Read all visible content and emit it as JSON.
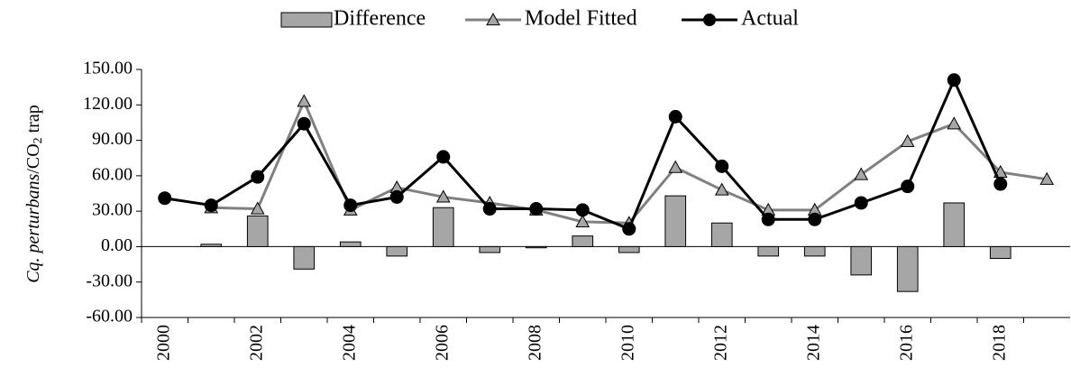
{
  "chart_data": {
    "type": "bar-line",
    "y_label": [
      "Cq. perturbans",
      "/CO",
      "2",
      " trap"
    ],
    "categories": [
      "2000",
      null,
      "2002",
      null,
      "2004",
      null,
      "2006",
      null,
      "2008",
      null,
      "2010",
      null,
      "2012",
      null,
      "2014",
      null,
      "2016",
      null,
      "2018",
      null
    ],
    "series": [
      {
        "name": "Difference",
        "type": "bar",
        "color": "#a6a6a6",
        "values": [
          null,
          2,
          26,
          -19,
          4,
          -8,
          33,
          -5,
          -1,
          9,
          -5,
          43,
          20,
          -8,
          -8,
          -24,
          -38,
          37,
          -10,
          null
        ]
      },
      {
        "name": "Model Fitted",
        "type": "line",
        "marker": "triangle",
        "color": "#808080",
        "values": [
          null,
          33,
          32,
          123,
          31,
          50,
          42,
          37,
          31,
          21,
          20,
          67,
          48,
          31,
          31,
          61,
          89,
          104,
          63,
          57
        ]
      },
      {
        "name": "Actual",
        "type": "line",
        "marker": "circle",
        "color": "#000000",
        "values": [
          41,
          35,
          59,
          104,
          35,
          42,
          76,
          32,
          32,
          31,
          15,
          110,
          68,
          23,
          23,
          37,
          51,
          141,
          53,
          null
        ]
      }
    ],
    "ylim": [
      -60,
      150
    ],
    "yticks": [
      {
        "value": -60,
        "label": "-60.00"
      },
      {
        "value": -30,
        "label": "-30.00"
      },
      {
        "value": 0,
        "label": "0.00"
      },
      {
        "value": 30,
        "label": "30.00"
      },
      {
        "value": 60,
        "label": "60.00"
      },
      {
        "value": 90,
        "label": "90.00"
      },
      {
        "value": 120,
        "label": "120.00"
      },
      {
        "value": 150,
        "label": "150.00"
      }
    ],
    "grid": false,
    "legend": "top"
  }
}
